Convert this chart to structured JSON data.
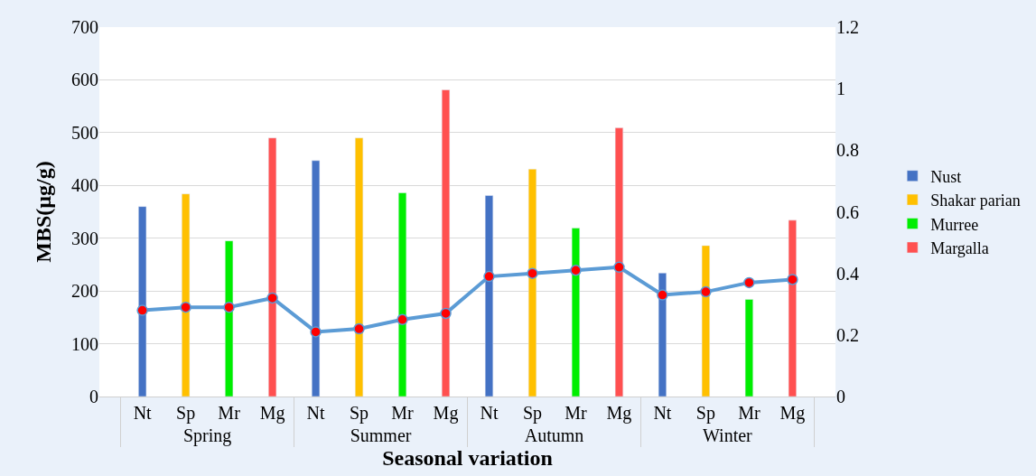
{
  "chart_data": {
    "type": "bar",
    "xlabel": "Seasonal variation",
    "ylabel": "MBS(µg/g)",
    "annotations": [
      "Spring",
      "Summer",
      "Autumn",
      "Winter"
    ],
    "categories": [
      "Nt",
      "Sp",
      "Mr",
      "Mg",
      "Nt",
      "Sp",
      "Mr",
      "Mg",
      "Nt",
      "Sp",
      "Mr",
      "Mg",
      "Nt",
      "Sp",
      "Mr",
      "Mg"
    ],
    "series": [
      {
        "name": "Nust",
        "color": "#4472c4",
        "values": [
          360,
          null,
          null,
          null,
          447,
          null,
          null,
          null,
          381,
          null,
          null,
          null,
          234,
          null,
          null,
          null
        ]
      },
      {
        "name": "Shakar parian",
        "color": "#ffc000",
        "values": [
          null,
          384,
          null,
          null,
          null,
          490,
          null,
          null,
          null,
          431,
          null,
          null,
          null,
          286,
          null,
          null
        ]
      },
      {
        "name": "Murree",
        "color": "#00ee00",
        "values": [
          null,
          null,
          295,
          null,
          null,
          null,
          386,
          null,
          null,
          null,
          319,
          null,
          null,
          null,
          184,
          null
        ]
      },
      {
        "name": "Margalla",
        "color": "#ff5050",
        "values": [
          null,
          null,
          null,
          490,
          null,
          null,
          null,
          581,
          null,
          null,
          null,
          509,
          null,
          null,
          null,
          334
        ]
      },
      {
        "type": "line",
        "axis": "y2",
        "color": "#5b9bd5",
        "colors": [
          "#ff0000",
          "#ff0000",
          "#ff0000",
          "#ff0000",
          "#ff0000",
          "#ff0000",
          "#ff0000",
          "#ff0000",
          "#ff0000",
          "#ff0000",
          "#ff0000",
          "#ff0000",
          "#ff0000",
          "#ff0000",
          "#ff0000",
          "#ff0000"
        ],
        "values": [
          0.28,
          0.29,
          0.29,
          0.32,
          0.21,
          0.22,
          0.25,
          0.27,
          0.39,
          0.4,
          0.41,
          0.42,
          0.33,
          0.34,
          0.37,
          0.38
        ]
      }
    ],
    "ylim": [
      0,
      700
    ],
    "yticks": [
      0,
      100,
      200,
      300,
      400,
      500,
      600,
      700
    ],
    "y2lim": [
      0,
      1.2
    ],
    "y2ticks": [
      0,
      0.2,
      0.4,
      0.6,
      0.8,
      1,
      1.2
    ],
    "grid": "y",
    "legend": "right",
    "marker": "circle"
  }
}
